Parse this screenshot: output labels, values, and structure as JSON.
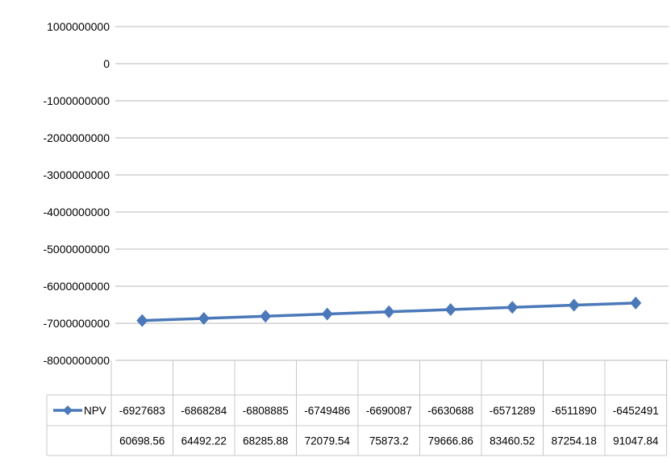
{
  "chart_data": {
    "type": "line",
    "series": [
      {
        "name": "NPV",
        "color": "#4a78b8",
        "marker": "diamond",
        "values": [
          -6927683,
          -6868284,
          -6808885,
          -6749486,
          -6690087,
          -6630688,
          -6571289,
          -6511890,
          -6452491
        ],
        "plotted_values": [
          -6927683000,
          -6868284000,
          -6808885000,
          -6749486000,
          -6690087000,
          -6630688000,
          -6571289000,
          -6511890000,
          -6452491000
        ]
      }
    ],
    "categories": [
      "60698.56",
      "64492.22",
      "68285.88",
      "72079.54",
      "75873.2",
      "79666.86",
      "83460.52",
      "87254.18",
      "91047.84"
    ],
    "y_ticks": [
      "1000000000",
      "0",
      "-1000000000",
      "-2000000000",
      "-3000000000",
      "-4000000000",
      "-5000000000",
      "-6000000000",
      "-7000000000",
      "-8000000000"
    ],
    "ylim": [
      -8000000000,
      1000000000
    ],
    "grid": true,
    "legend": "data-table",
    "title": "",
    "xlabel": "",
    "ylabel": ""
  }
}
